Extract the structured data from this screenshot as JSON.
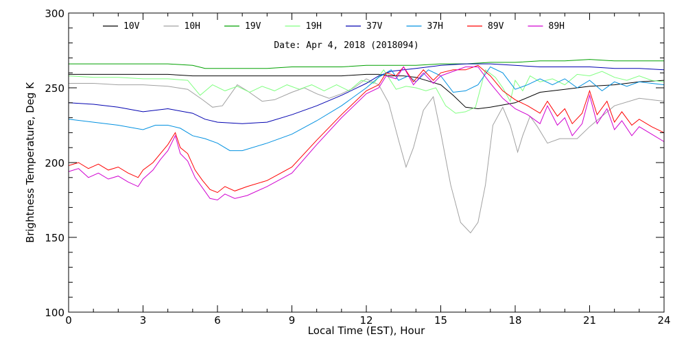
{
  "chart_data": {
    "type": "line",
    "subtitle": "Date: Apr  4, 2018 (2018094)",
    "xlabel": "Local Time (EST), Hour",
    "ylabel": "Brightness Temperature, Deg K",
    "xlim": [
      0,
      24
    ],
    "ylim": [
      100,
      300
    ],
    "xticks": [
      0,
      3,
      6,
      9,
      12,
      15,
      18,
      21,
      24
    ],
    "yticks": [
      100,
      150,
      200,
      250,
      300
    ],
    "legend_position": "top",
    "series": [
      {
        "name": "10V",
        "color": "#000000",
        "x": [
          0,
          1,
          2,
          3,
          4,
          5,
          6,
          7,
          8,
          9,
          10,
          11,
          12,
          12.5,
          13,
          13.5,
          14,
          15,
          15.5,
          16,
          16.5,
          17,
          18,
          19,
          20,
          21,
          22,
          23,
          24
        ],
        "y": [
          259,
          259,
          259,
          259,
          259,
          258,
          258,
          258,
          258,
          258,
          258,
          258,
          259,
          259,
          258,
          258,
          257,
          252,
          245,
          237,
          236,
          237,
          240,
          247,
          249,
          251,
          252,
          254,
          255
        ]
      },
      {
        "name": "10H",
        "color": "#a0a0a0",
        "x": [
          0,
          1,
          2,
          3,
          4,
          4.8,
          5.4,
          5.8,
          6.2,
          6.8,
          7.2,
          7.8,
          8.3,
          9,
          9.5,
          10,
          10.5,
          11,
          11.5,
          12,
          12.5,
          12.9,
          13.3,
          13.6,
          13.9,
          14.3,
          14.7,
          15,
          15.4,
          15.8,
          16.2,
          16.5,
          16.8,
          17.1,
          17.5,
          17.8,
          18.1,
          18.3,
          18.6,
          18.9,
          19.3,
          19.8,
          20.5,
          21,
          21.5,
          22,
          23,
          24
        ],
        "y": [
          253,
          253,
          252,
          252,
          251,
          249,
          242,
          237,
          238,
          252,
          248,
          241,
          242,
          247,
          250,
          246,
          243,
          246,
          250,
          256,
          252,
          240,
          215,
          197,
          210,
          235,
          244,
          220,
          185,
          160,
          153,
          160,
          185,
          225,
          237,
          225,
          207,
          218,
          231,
          224,
          213,
          216,
          216,
          224,
          231,
          238,
          243,
          241
        ]
      },
      {
        "name": "19V",
        "color": "#00a000",
        "x": [
          0,
          1,
          2,
          3,
          4,
          5,
          5.5,
          6,
          7,
          8,
          9,
          10,
          11,
          12,
          13,
          14,
          15,
          16,
          17,
          18,
          19,
          20,
          21,
          22,
          23,
          24
        ],
        "y": [
          266,
          266,
          266,
          266,
          266,
          265,
          263,
          263,
          263,
          263,
          264,
          264,
          264,
          265,
          265,
          265,
          266,
          266,
          267,
          267,
          268,
          268,
          269,
          268,
          268,
          268
        ]
      },
      {
        "name": "19H",
        "color": "#80ff80",
        "x": [
          0,
          1,
          2,
          3,
          4,
          4.8,
          5.3,
          5.8,
          6.3,
          6.8,
          7.3,
          7.8,
          8.3,
          8.8,
          9.3,
          9.8,
          10.3,
          10.8,
          11.3,
          11.8,
          12.3,
          12.7,
          13.2,
          13.6,
          14,
          14.4,
          14.8,
          15.2,
          15.6,
          16,
          16.4,
          16.8,
          17.2,
          17.5,
          17.8,
          18,
          18.3,
          18.6,
          19,
          19.5,
          20,
          20.5,
          21,
          21.5,
          22,
          22.5,
          23,
          23.5,
          24
        ],
        "y": [
          258,
          257,
          257,
          256,
          256,
          255,
          245,
          252,
          248,
          251,
          247,
          251,
          248,
          252,
          249,
          252,
          248,
          252,
          248,
          255,
          253,
          262,
          249,
          251,
          250,
          248,
          250,
          238,
          233,
          234,
          237,
          262,
          257,
          250,
          241,
          255,
          248,
          258,
          254,
          256,
          252,
          259,
          258,
          261,
          257,
          255,
          258,
          255,
          254
        ]
      },
      {
        "name": "37V",
        "color": "#0000b0",
        "x": [
          0,
          1,
          2,
          3,
          4,
          5,
          5.5,
          6,
          7,
          8,
          9,
          10,
          11,
          12,
          12.5,
          13,
          13.5,
          14,
          15,
          16,
          17,
          18,
          19,
          20,
          21,
          22,
          23,
          24
        ],
        "y": [
          240,
          239,
          237,
          234,
          236,
          233,
          229,
          227,
          226,
          227,
          232,
          238,
          245,
          253,
          258,
          261,
          262,
          263,
          265,
          266,
          266,
          265,
          264,
          264,
          264,
          263,
          263,
          262
        ]
      },
      {
        "name": "37H",
        "color": "#0090e0",
        "x": [
          0,
          1,
          2,
          3,
          3.5,
          4,
          4.5,
          5,
          5.5,
          6,
          6.5,
          7,
          8,
          9,
          10,
          11,
          12,
          12.5,
          13,
          13.3,
          13.7,
          14,
          14.5,
          15,
          15.5,
          16,
          16.5,
          17,
          17.5,
          18,
          18.5,
          19,
          19.5,
          20,
          20.5,
          21,
          21.5,
          22,
          22.5,
          23,
          24
        ],
        "y": [
          229,
          227,
          225,
          222,
          225,
          225,
          223,
          218,
          216,
          213,
          208,
          208,
          213,
          219,
          228,
          238,
          250,
          257,
          262,
          255,
          258,
          254,
          262,
          258,
          247,
          248,
          252,
          264,
          260,
          249,
          252,
          256,
          252,
          256,
          250,
          255,
          248,
          254,
          251,
          254,
          252
        ]
      },
      {
        "name": "89V",
        "color": "#ff0000",
        "x": [
          0,
          0.4,
          0.8,
          1.2,
          1.6,
          2,
          2.4,
          2.8,
          3,
          3.4,
          3.7,
          4,
          4.3,
          4.5,
          4.8,
          5.1,
          5.4,
          5.7,
          6,
          6.3,
          6.7,
          7.2,
          8,
          9,
          10,
          11,
          12,
          12.5,
          12.8,
          13.2,
          13.5,
          13.9,
          14.3,
          14.7,
          15,
          15.5,
          16,
          16.5,
          17,
          17.5,
          18,
          18.5,
          19,
          19.3,
          19.7,
          20,
          20.3,
          20.7,
          21,
          21.3,
          21.7,
          22,
          22.3,
          22.7,
          23,
          23.5,
          24
        ],
        "y": [
          198,
          200,
          196,
          199,
          195,
          197,
          193,
          190,
          195,
          200,
          206,
          212,
          220,
          210,
          206,
          195,
          188,
          182,
          180,
          184,
          181,
          184,
          188,
          197,
          215,
          232,
          248,
          252,
          260,
          258,
          264,
          254,
          262,
          255,
          260,
          262,
          262,
          265,
          258,
          248,
          242,
          238,
          233,
          241,
          231,
          236,
          226,
          233,
          248,
          232,
          241,
          227,
          234,
          225,
          229,
          224,
          220
        ]
      },
      {
        "name": "89H",
        "color": "#d000d0",
        "x": [
          0,
          0.4,
          0.8,
          1.2,
          1.6,
          2,
          2.4,
          2.8,
          3,
          3.4,
          3.7,
          4,
          4.3,
          4.5,
          4.8,
          5.1,
          5.4,
          5.7,
          6,
          6.3,
          6.7,
          7.2,
          8,
          9,
          10,
          11,
          12,
          12.5,
          12.8,
          13.2,
          13.5,
          13.9,
          14.3,
          14.7,
          15,
          15.5,
          16,
          16.5,
          17,
          17.5,
          18,
          18.5,
          19,
          19.3,
          19.7,
          20,
          20.3,
          20.7,
          21,
          21.3,
          21.7,
          22,
          22.3,
          22.7,
          23,
          23.5,
          24
        ],
        "y": [
          194,
          196,
          190,
          193,
          189,
          191,
          187,
          184,
          189,
          195,
          202,
          208,
          218,
          206,
          201,
          190,
          183,
          176,
          175,
          179,
          176,
          178,
          184,
          193,
          212,
          230,
          246,
          250,
          258,
          256,
          264,
          252,
          260,
          253,
          258,
          261,
          264,
          264,
          253,
          243,
          236,
          232,
          226,
          238,
          225,
          230,
          218,
          226,
          245,
          226,
          236,
          222,
          228,
          218,
          224,
          219,
          214
        ]
      }
    ]
  }
}
